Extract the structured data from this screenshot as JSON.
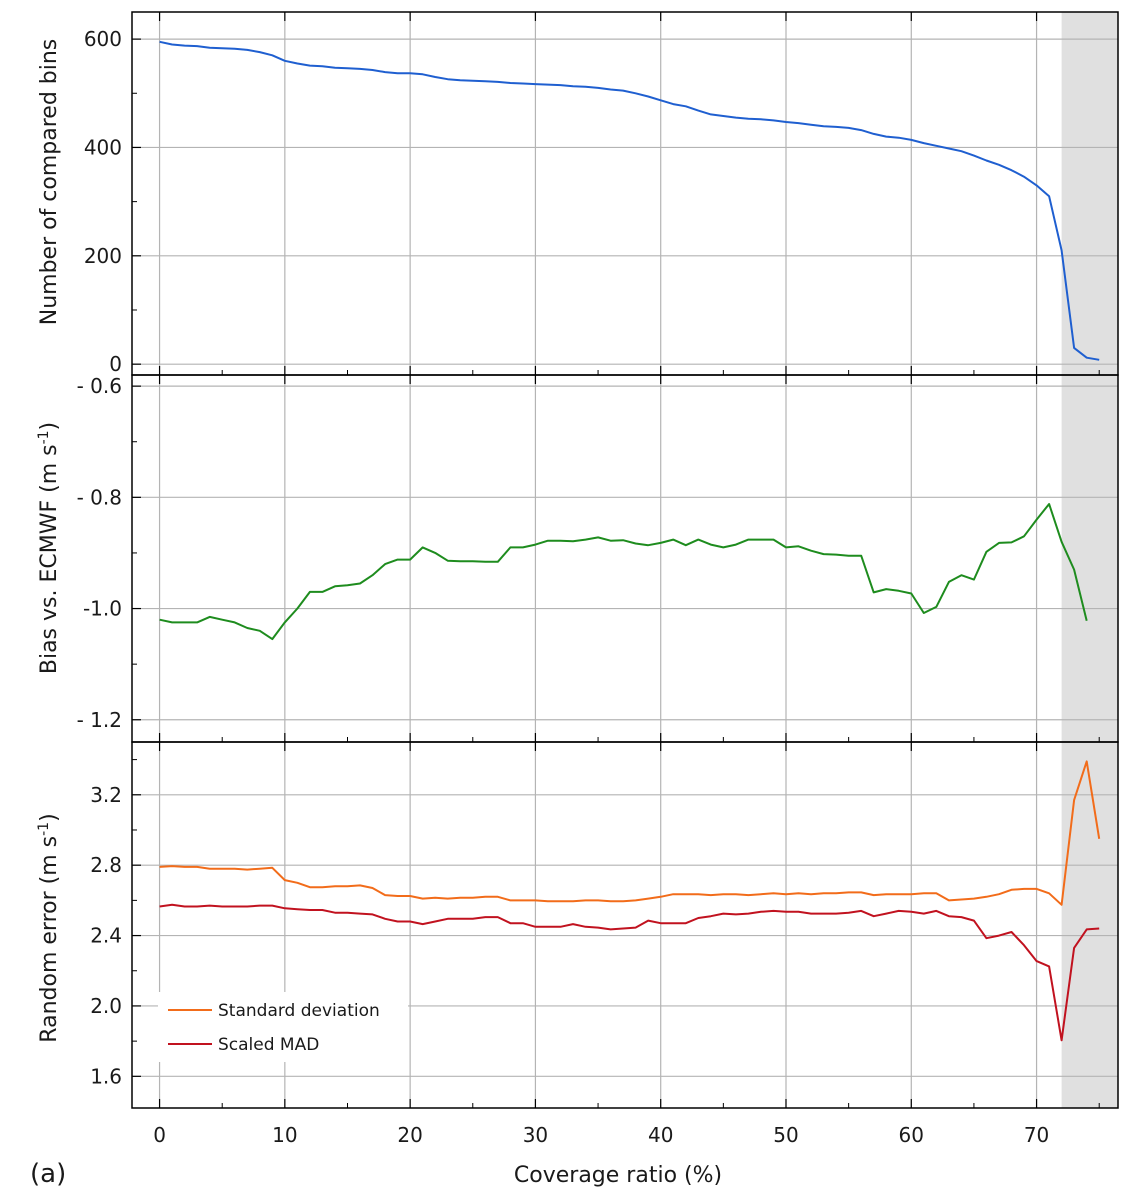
{
  "panel_label": "(a)",
  "chart_data": {
    "type": "line",
    "xlabel": "Coverage ratio (%)",
    "xlim": [
      -2.2,
      76.5
    ],
    "x_ticks": [
      0,
      10,
      20,
      30,
      40,
      50,
      60,
      70
    ],
    "shaded_region": {
      "x_from": 72,
      "x_to": 76.5,
      "color": "#e0e0e0"
    },
    "grid": true,
    "panels": [
      {
        "id": "bins",
        "ylabel": "Number of compared bins",
        "ylim": [
          -20,
          650
        ],
        "y_ticks": [
          0,
          200,
          400,
          600
        ],
        "y_tick_labels": [
          "0",
          "200",
          "400",
          "600"
        ],
        "series": [
          {
            "color": "#1f5fd0",
            "x": [
              0,
              1,
              2,
              3,
              4,
              5,
              6,
              7,
              8,
              9,
              10,
              11,
              12,
              13,
              14,
              15,
              16,
              17,
              18,
              19,
              20,
              21,
              22,
              23,
              24,
              25,
              26,
              27,
              28,
              29,
              30,
              31,
              32,
              33,
              34,
              35,
              36,
              37,
              38,
              39,
              40,
              41,
              42,
              43,
              44,
              45,
              46,
              47,
              48,
              49,
              50,
              51,
              52,
              53,
              54,
              55,
              56,
              57,
              58,
              59,
              60,
              61,
              62,
              63,
              64,
              65,
              66,
              67,
              68,
              69,
              70,
              71,
              72,
              73,
              74,
              75
            ],
            "values": [
              595,
              590,
              588,
              587,
              584,
              583,
              582,
              580,
              576,
              570,
              560,
              555,
              551,
              550,
              547,
              546,
              545,
              543,
              539,
              537,
              537,
              535,
              530,
              526,
              524,
              523,
              522,
              521,
              519,
              518,
              517,
              516,
              515,
              513,
              512,
              510,
              507,
              505,
              500,
              494,
              487,
              480,
              476,
              468,
              461,
              458,
              455,
              453,
              452,
              450,
              447,
              445,
              442,
              439,
              438,
              436,
              432,
              425,
              420,
              418,
              414,
              408,
              403,
              398,
              393,
              385,
              376,
              368,
              358,
              346,
              330,
              310,
              210,
              30,
              12,
              8
            ]
          }
        ]
      },
      {
        "id": "bias",
        "ylabel": "Bias vs. ECMWF (m s-1)",
        "ylim": [
          -1.24,
          -0.58
        ],
        "y_ticks": [
          -0.6,
          -0.8,
          -1.0,
          -1.2
        ],
        "y_tick_labels": [
          "- 0.6",
          "- 0.8",
          "-1.0",
          "- 1.2"
        ],
        "series": [
          {
            "color": "#1e8c1e",
            "x": [
              0,
              1,
              2,
              3,
              4,
              5,
              6,
              7,
              8,
              9,
              10,
              11,
              12,
              13,
              14,
              15,
              16,
              17,
              18,
              19,
              20,
              21,
              22,
              23,
              24,
              25,
              26,
              27,
              28,
              29,
              30,
              31,
              32,
              33,
              34,
              35,
              36,
              37,
              38,
              39,
              40,
              41,
              42,
              43,
              44,
              45,
              46,
              47,
              48,
              49,
              50,
              51,
              52,
              53,
              54,
              55,
              56,
              57,
              58,
              59,
              60,
              61,
              62,
              63,
              64,
              65,
              66,
              67,
              68,
              69,
              70,
              71,
              72,
              73,
              74
            ],
            "values": [
              -1.02,
              -1.025,
              -1.025,
              -1.025,
              -1.015,
              -1.02,
              -1.025,
              -1.035,
              -1.04,
              -1.055,
              -1.025,
              -1.0,
              -0.97,
              -0.97,
              -0.96,
              -0.958,
              -0.955,
              -0.94,
              -0.92,
              -0.912,
              -0.912,
              -0.89,
              -0.9,
              -0.914,
              -0.915,
              -0.915,
              -0.916,
              -0.916,
              -0.89,
              -0.89,
              -0.885,
              -0.878,
              -0.878,
              -0.879,
              -0.876,
              -0.872,
              -0.878,
              -0.877,
              -0.883,
              -0.886,
              -0.882,
              -0.876,
              -0.886,
              -0.876,
              -0.885,
              -0.89,
              -0.885,
              -0.876,
              -0.876,
              -0.876,
              -0.89,
              -0.888,
              -0.896,
              -0.902,
              -0.903,
              -0.905,
              -0.905,
              -0.971,
              -0.965,
              -0.968,
              -0.973,
              -1.008,
              -0.997,
              -0.952,
              -0.94,
              -0.948,
              -0.898,
              -0.882,
              -0.881,
              -0.87,
              -0.84,
              -0.812,
              -0.88,
              -0.93,
              -1.022
            ]
          }
        ]
      },
      {
        "id": "random",
        "ylabel": "Random error (m s-1)",
        "ylim": [
          1.42,
          3.5
        ],
        "y_ticks": [
          1.6,
          2.0,
          2.4,
          2.8,
          3.2
        ],
        "y_tick_labels": [
          "1.6",
          "2.0",
          "2.4",
          "2.8",
          "3.2"
        ],
        "legend": {
          "position": "bottom-left"
        },
        "series": [
          {
            "name": "Standard deviation",
            "color": "#f26c1a",
            "x": [
              0,
              1,
              2,
              3,
              4,
              5,
              6,
              7,
              8,
              9,
              10,
              11,
              12,
              13,
              14,
              15,
              16,
              17,
              18,
              19,
              20,
              21,
              22,
              23,
              24,
              25,
              26,
              27,
              28,
              29,
              30,
              31,
              32,
              33,
              34,
              35,
              36,
              37,
              38,
              39,
              40,
              41,
              42,
              43,
              44,
              45,
              46,
              47,
              48,
              49,
              50,
              51,
              52,
              53,
              54,
              55,
              56,
              57,
              58,
              59,
              60,
              61,
              62,
              63,
              64,
              65,
              66,
              67,
              68,
              69,
              70,
              71,
              72,
              73,
              74,
              75
            ],
            "values": [
              2.79,
              2.795,
              2.79,
              2.79,
              2.78,
              2.78,
              2.78,
              2.775,
              2.78,
              2.785,
              2.715,
              2.7,
              2.675,
              2.675,
              2.68,
              2.68,
              2.685,
              2.67,
              2.63,
              2.625,
              2.625,
              2.61,
              2.615,
              2.61,
              2.615,
              2.615,
              2.62,
              2.62,
              2.6,
              2.6,
              2.6,
              2.595,
              2.595,
              2.595,
              2.6,
              2.6,
              2.595,
              2.595,
              2.6,
              2.61,
              2.62,
              2.635,
              2.635,
              2.635,
              2.63,
              2.635,
              2.635,
              2.63,
              2.635,
              2.64,
              2.635,
              2.64,
              2.635,
              2.64,
              2.64,
              2.645,
              2.645,
              2.63,
              2.635,
              2.635,
              2.635,
              2.64,
              2.64,
              2.6,
              2.605,
              2.61,
              2.62,
              2.635,
              2.66,
              2.665,
              2.665,
              2.64,
              2.575,
              3.17,
              3.39,
              2.95
            ]
          },
          {
            "name": "Scaled MAD",
            "color": "#c1121f",
            "x": [
              0,
              1,
              2,
              3,
              4,
              5,
              6,
              7,
              8,
              9,
              10,
              11,
              12,
              13,
              14,
              15,
              16,
              17,
              18,
              19,
              20,
              21,
              22,
              23,
              24,
              25,
              26,
              27,
              28,
              29,
              30,
              31,
              32,
              33,
              34,
              35,
              36,
              37,
              38,
              39,
              40,
              41,
              42,
              43,
              44,
              45,
              46,
              47,
              48,
              49,
              50,
              51,
              52,
              53,
              54,
              55,
              56,
              57,
              58,
              59,
              60,
              61,
              62,
              63,
              64,
              65,
              66,
              67,
              68,
              69,
              70,
              71,
              72,
              73,
              74,
              75
            ],
            "values": [
              2.565,
              2.575,
              2.565,
              2.565,
              2.57,
              2.565,
              2.565,
              2.565,
              2.57,
              2.57,
              2.555,
              2.55,
              2.545,
              2.545,
              2.53,
              2.53,
              2.525,
              2.52,
              2.495,
              2.48,
              2.48,
              2.465,
              2.48,
              2.495,
              2.495,
              2.495,
              2.505,
              2.505,
              2.47,
              2.47,
              2.45,
              2.45,
              2.45,
              2.465,
              2.45,
              2.445,
              2.435,
              2.44,
              2.445,
              2.485,
              2.47,
              2.47,
              2.47,
              2.5,
              2.51,
              2.525,
              2.52,
              2.525,
              2.535,
              2.54,
              2.535,
              2.535,
              2.525,
              2.525,
              2.525,
              2.53,
              2.54,
              2.51,
              2.525,
              2.54,
              2.535,
              2.525,
              2.54,
              2.51,
              2.505,
              2.485,
              2.385,
              2.4,
              2.42,
              2.345,
              2.255,
              2.225,
              1.805,
              2.33,
              2.435,
              2.44
            ]
          }
        ]
      }
    ]
  }
}
